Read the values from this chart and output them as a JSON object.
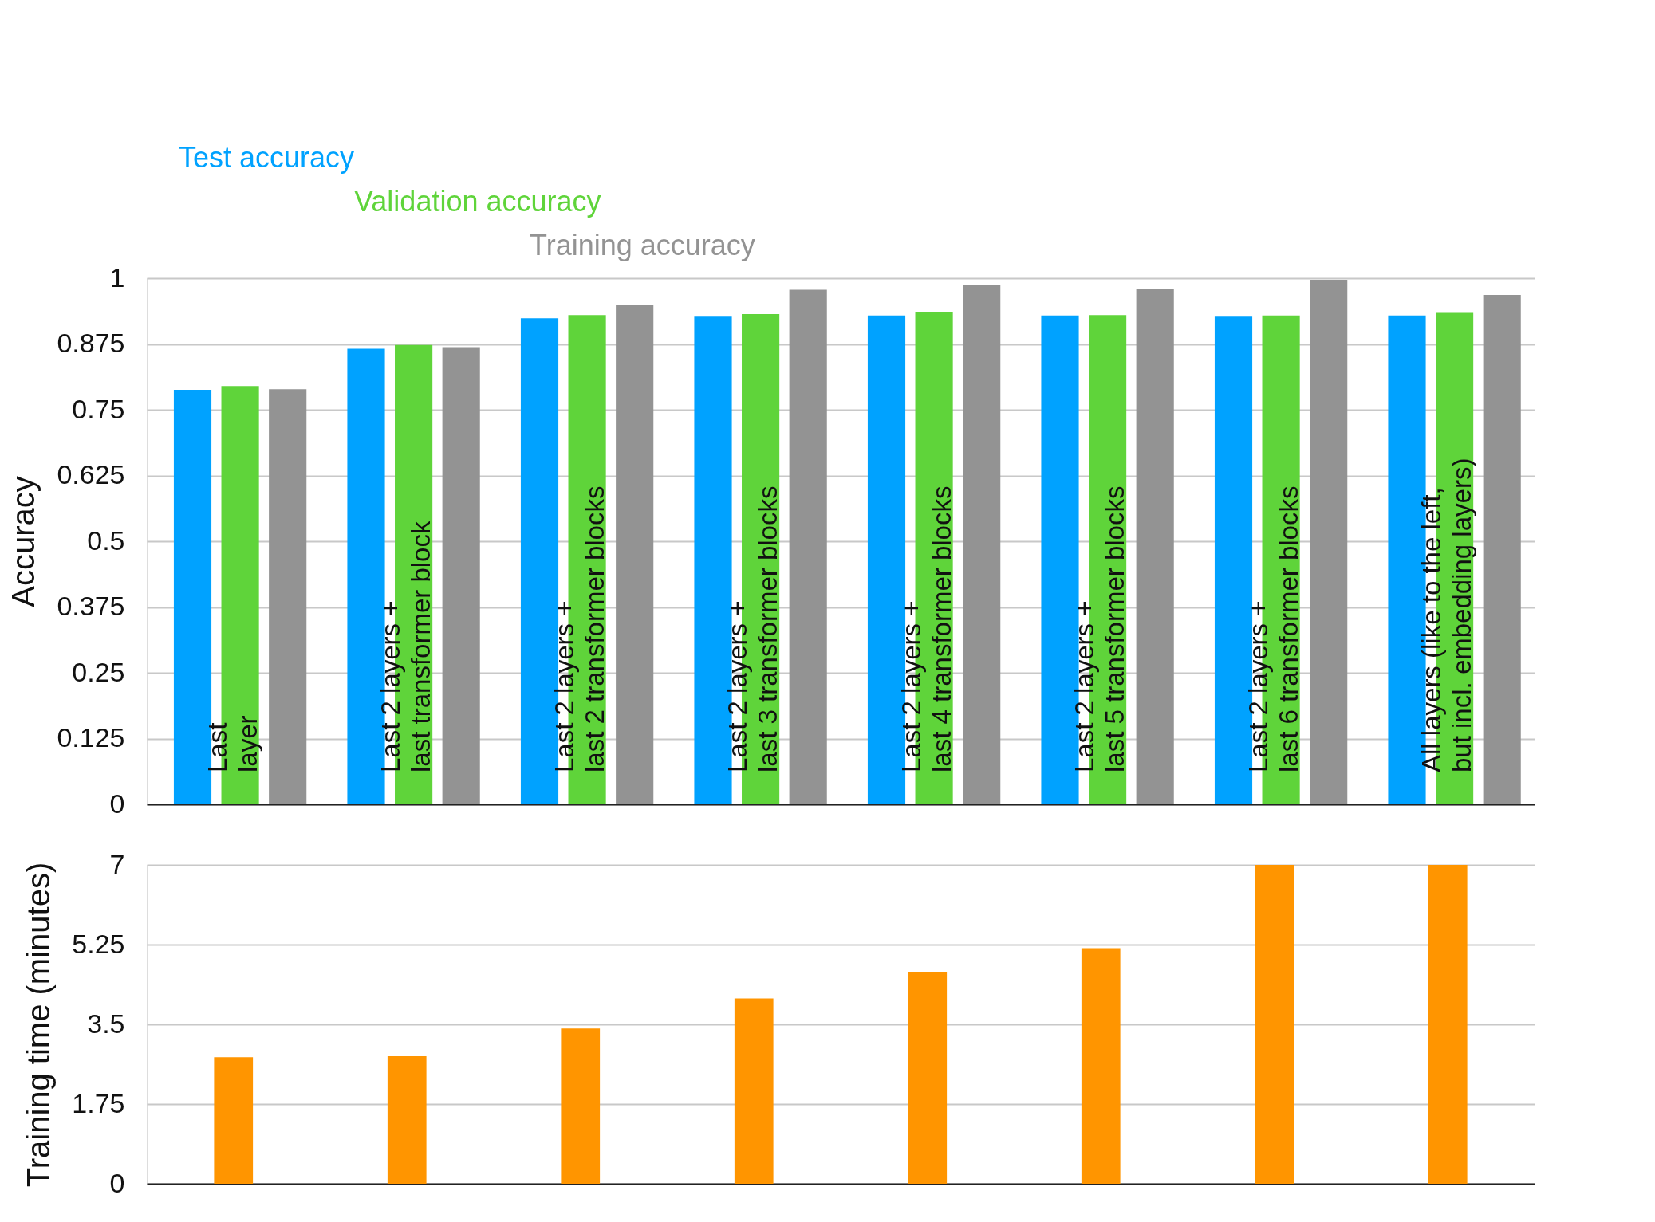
{
  "chart_data": [
    {
      "type": "bar",
      "ylabel": "Accuracy",
      "categories": [
        "Last\nlayer",
        "Last 2 layers +\nlast transformer block",
        "Last 2 layers +\nlast 2 transformer blocks",
        "Last 2 layers +\nlast 3 transformer blocks",
        "Last 2 layers +\nlast 4 transformer blocks",
        "Last 2 layers +\nlast 5 transformer blocks",
        "Last 2 layers +\nlast 6 transformer blocks",
        "All layers (like to the left,\nbut incl. embedding layers)"
      ],
      "series": [
        {
          "name": "Test accuracy",
          "color": "#00a2ff",
          "values": [
            0.788,
            0.866,
            0.924,
            0.927,
            0.929,
            0.929,
            0.927,
            0.929
          ]
        },
        {
          "name": "Validation accuracy",
          "color": "#5fd43a",
          "values": [
            0.795,
            0.873,
            0.93,
            0.932,
            0.935,
            0.93,
            0.929,
            0.934
          ]
        },
        {
          "name": "Training accuracy",
          "color": "#939393",
          "values": [
            0.789,
            0.869,
            0.949,
            0.978,
            0.988,
            0.98,
            0.997,
            0.968
          ]
        }
      ],
      "ylim": [
        0,
        1
      ],
      "yticks": [
        0,
        0.125,
        0.25,
        0.375,
        0.5,
        0.625,
        0.75,
        0.875,
        1
      ],
      "grid": "y",
      "tick_labels": "y"
    },
    {
      "type": "bar",
      "ylabel": "Training time (minutes)",
      "categories": [
        null,
        null,
        null,
        null,
        null,
        null,
        null,
        null
      ],
      "series": [
        {
          "color": "#ff9500",
          "values": [
            2.78,
            2.8,
            3.41,
            4.07,
            4.65,
            5.17,
            7,
            7
          ]
        }
      ],
      "ylim": [
        0,
        7
      ],
      "yticks": [
        0,
        1.75,
        3.5,
        5.25,
        7
      ],
      "grid": "y",
      "tick_labels": "y"
    }
  ]
}
